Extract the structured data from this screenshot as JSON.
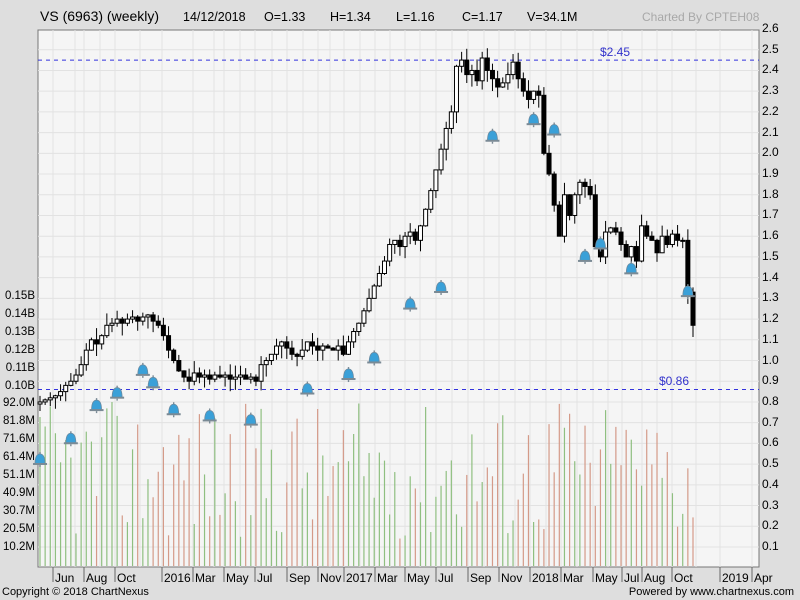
{
  "header": {
    "symbol": "VS (6963) (weekly)",
    "date": "14/12/2018",
    "open": "O=1.33",
    "high": "H=1.34",
    "low": "L=1.16",
    "close": "C=1.17",
    "volume": "V=34.1M",
    "credit": "Charted By CPTEH08"
  },
  "footer": {
    "copyright": "Copyright © 2018 ChartNexus",
    "powered": "Powered by www.chartnexus.com"
  },
  "levels": {
    "resistance_label": "$2.45",
    "support_label": "$0.86"
  },
  "colors": {
    "background": "#dedede",
    "plot": "#f5f5f5",
    "grid": "#e2e2e2",
    "level_line": "#3333dd",
    "vol_up": "#8fbf80",
    "vol_down": "#d49a88",
    "alert": "#3aa0d8"
  },
  "chart_data": {
    "type": "candlestick",
    "title": "VS (6963) (weekly)",
    "price_axis": {
      "position": "right",
      "ticks": [
        "2.6",
        "2.5",
        "2.4",
        "2.3",
        "2.2",
        "2.1",
        "2.0",
        "1.9",
        "1.8",
        "1.7",
        "1.6",
        "1.5",
        "1.4",
        "1.3",
        "1.2",
        "1.1",
        "1.0",
        "0.9",
        "0.8",
        "0.7",
        "0.6",
        "0.5",
        "0.4",
        "0.3",
        "0.2",
        "0.1"
      ],
      "range": [
        0.0,
        2.6
      ]
    },
    "volume_axis": {
      "position": "left",
      "ticks": [
        "0.15B",
        "0.14B",
        "0.13B",
        "0.12B",
        "0.11B",
        "0.10B",
        "92.0M",
        "81.8M",
        "71.6M",
        "61.4M",
        "51.1M",
        "40.9M",
        "30.7M",
        "20.5M",
        "10.2M"
      ]
    },
    "x_ticks": [
      "Jun",
      "Aug",
      "Oct",
      "2016",
      "Mar",
      "May",
      "Jul",
      "Sep",
      "Nov",
      "2017",
      "Mar",
      "May",
      "Jul",
      "Sep",
      "Nov",
      "2018",
      "Mar",
      "May",
      "Jul",
      "Aug",
      "Oct",
      "2019",
      "Apr"
    ],
    "horizontal_lines": [
      {
        "label": "$2.45",
        "value": 2.45
      },
      {
        "label": "$0.86",
        "value": 0.86
      }
    ],
    "last_bar": {
      "date": "14/12/2018",
      "open": 1.33,
      "high": 1.34,
      "low": 1.16,
      "close": 1.17,
      "volume": "34.1M"
    },
    "price_path": [
      [
        0.79,
        0.8
      ],
      [
        0.8,
        0.81
      ],
      [
        0.81,
        0.82
      ],
      [
        0.82,
        0.83
      ],
      [
        0.83,
        0.85
      ],
      [
        0.85,
        0.88
      ],
      [
        0.88,
        0.9
      ],
      [
        0.9,
        0.93
      ],
      [
        0.93,
        0.98
      ],
      [
        0.98,
        1.05
      ],
      [
        1.05,
        1.1
      ],
      [
        1.1,
        1.08
      ],
      [
        1.08,
        1.12
      ],
      [
        1.12,
        1.17
      ],
      [
        1.17,
        1.18
      ],
      [
        1.18,
        1.2
      ],
      [
        1.2,
        1.18
      ],
      [
        1.18,
        1.2
      ],
      [
        1.2,
        1.21
      ],
      [
        1.21,
        1.19
      ],
      [
        1.19,
        1.21
      ],
      [
        1.21,
        1.22
      ],
      [
        1.22,
        1.19
      ],
      [
        1.19,
        1.17
      ],
      [
        1.17,
        1.12
      ],
      [
        1.12,
        1.05
      ],
      [
        1.05,
        1.0
      ],
      [
        1.0,
        0.95
      ],
      [
        0.95,
        0.92
      ],
      [
        0.92,
        0.9
      ],
      [
        0.9,
        0.94
      ],
      [
        0.94,
        0.92
      ],
      [
        0.92,
        0.93
      ],
      [
        0.93,
        0.91
      ],
      [
        0.91,
        0.93
      ],
      [
        0.93,
        0.92
      ],
      [
        0.92,
        0.93
      ],
      [
        0.93,
        0.91
      ],
      [
        0.91,
        0.92
      ],
      [
        0.92,
        0.93
      ],
      [
        0.93,
        0.91
      ],
      [
        0.91,
        0.92
      ],
      [
        0.92,
        0.9
      ],
      [
        0.9,
        0.98
      ],
      [
        0.98,
        1.0
      ],
      [
        1.0,
        1.03
      ],
      [
        1.03,
        1.07
      ],
      [
        1.07,
        1.09
      ],
      [
        1.09,
        1.06
      ],
      [
        1.06,
        1.03
      ],
      [
        1.03,
        1.02
      ],
      [
        1.02,
        1.05
      ],
      [
        1.05,
        1.09
      ],
      [
        1.09,
        1.07
      ],
      [
        1.07,
        1.05
      ],
      [
        1.05,
        1.07
      ],
      [
        1.07,
        1.06
      ],
      [
        1.06,
        1.05
      ],
      [
        1.05,
        1.07
      ],
      [
        1.07,
        1.03
      ],
      [
        1.03,
        1.09
      ],
      [
        1.09,
        1.14
      ],
      [
        1.14,
        1.18
      ],
      [
        1.18,
        1.24
      ],
      [
        1.24,
        1.3
      ],
      [
        1.3,
        1.36
      ],
      [
        1.36,
        1.42
      ],
      [
        1.42,
        1.48
      ],
      [
        1.48,
        1.56
      ],
      [
        1.56,
        1.58
      ],
      [
        1.58,
        1.55
      ],
      [
        1.55,
        1.6
      ],
      [
        1.6,
        1.62
      ],
      [
        1.62,
        1.58
      ],
      [
        1.58,
        1.65
      ],
      [
        1.65,
        1.73
      ],
      [
        1.73,
        1.82
      ],
      [
        1.82,
        1.92
      ],
      [
        1.92,
        2.02
      ],
      [
        2.02,
        2.12
      ],
      [
        2.12,
        2.2
      ],
      [
        2.2,
        2.42
      ],
      [
        2.42,
        2.45
      ],
      [
        2.45,
        2.38
      ],
      [
        2.38,
        2.4
      ],
      [
        2.4,
        2.35
      ],
      [
        2.35,
        2.46
      ],
      [
        2.46,
        2.4
      ],
      [
        2.4,
        2.36
      ],
      [
        2.36,
        2.32
      ],
      [
        2.32,
        2.34
      ],
      [
        2.34,
        2.38
      ],
      [
        2.38,
        2.44
      ],
      [
        2.44,
        2.36
      ],
      [
        2.36,
        2.3
      ],
      [
        2.3,
        2.26
      ],
      [
        2.26,
        2.3
      ],
      [
        2.3,
        2.28
      ],
      [
        2.28,
        2.0
      ],
      [
        2.0,
        1.9
      ],
      [
        1.9,
        1.75
      ],
      [
        1.75,
        1.6
      ],
      [
        1.6,
        1.8
      ],
      [
        1.8,
        1.7
      ],
      [
        1.7,
        1.8
      ],
      [
        1.8,
        1.86
      ],
      [
        1.86,
        1.84
      ],
      [
        1.84,
        1.8
      ],
      [
        1.8,
        1.55
      ],
      [
        1.55,
        1.5
      ],
      [
        1.5,
        1.62
      ],
      [
        1.62,
        1.64
      ],
      [
        1.64,
        1.62
      ],
      [
        1.62,
        1.56
      ],
      [
        1.56,
        1.5
      ],
      [
        1.5,
        1.55
      ],
      [
        1.55,
        1.48
      ],
      [
        1.48,
        1.65
      ],
      [
        1.65,
        1.6
      ],
      [
        1.6,
        1.58
      ],
      [
        1.58,
        1.52
      ],
      [
        1.52,
        1.6
      ],
      [
        1.6,
        1.56
      ],
      [
        1.56,
        1.61
      ],
      [
        1.61,
        1.58
      ],
      [
        1.58,
        1.58
      ],
      [
        1.58,
        1.33
      ],
      [
        1.33,
        1.17
      ]
    ],
    "alert_markers": [
      [
        0,
        0.52
      ],
      [
        6,
        0.62
      ],
      [
        11,
        0.78
      ],
      [
        15,
        0.84
      ],
      [
        20,
        0.95
      ],
      [
        22,
        0.89
      ],
      [
        26,
        0.76
      ],
      [
        33,
        0.73
      ],
      [
        41,
        0.71
      ],
      [
        52,
        0.86
      ],
      [
        60,
        0.93
      ],
      [
        65,
        1.01
      ],
      [
        72,
        1.27
      ],
      [
        78,
        1.35
      ],
      [
        88,
        2.08
      ],
      [
        96,
        2.16
      ],
      [
        100,
        2.11
      ],
      [
        106,
        1.5
      ],
      [
        109,
        1.56
      ],
      [
        115,
        1.44
      ],
      [
        126,
        1.33
      ]
    ]
  }
}
